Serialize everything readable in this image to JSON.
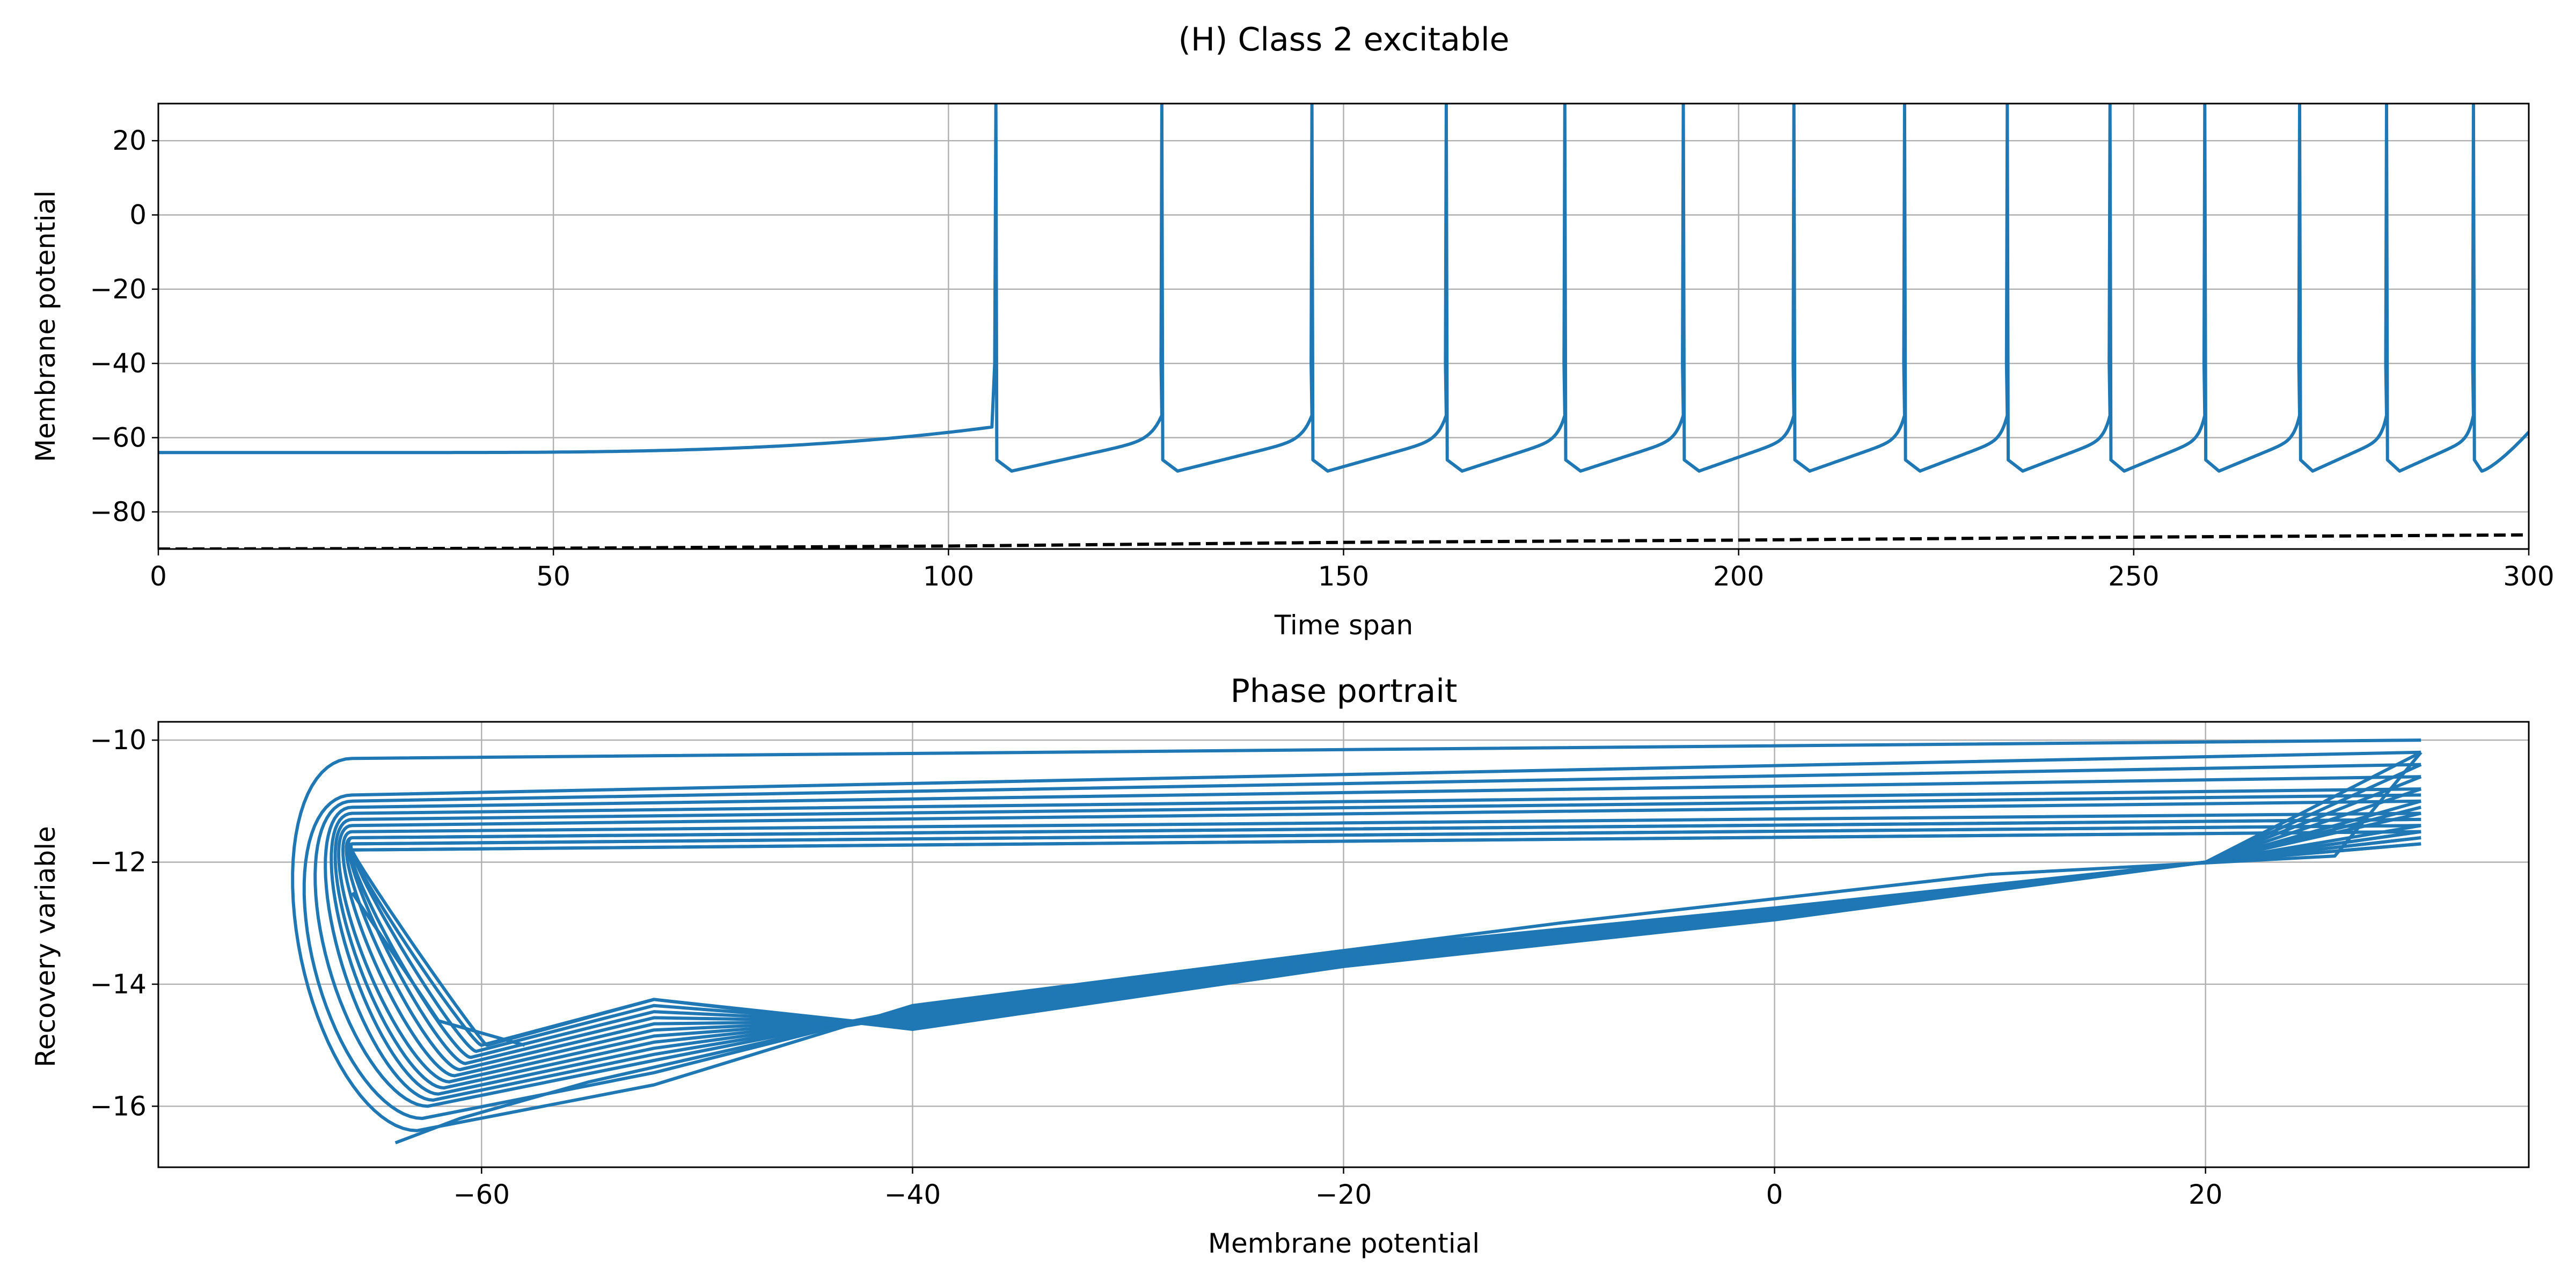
{
  "figure": {
    "suptitle": "(H) Class 2 excitable"
  },
  "colors": {
    "trace": "#1f77b4",
    "input": "#000000",
    "grid": "#b0b0b0",
    "axes": "#000000"
  },
  "chart_data": [
    {
      "type": "line",
      "title": "",
      "xlabel": "Time span",
      "ylabel": "Membrane potential",
      "xlim": [
        0,
        300
      ],
      "ylim": [
        -90,
        30
      ],
      "xticks": [
        0,
        50,
        100,
        150,
        200,
        250,
        300
      ],
      "yticks": [
        -80,
        -60,
        -40,
        -20,
        0,
        20
      ],
      "grid": true,
      "model": {
        "rest_v": -64,
        "ramp_start_t": 32,
        "pre_spike_v": -57,
        "spike_peak_v": 30,
        "reset_v": -66,
        "trough_v": -69,
        "end_v": -58.5
      },
      "spike_times": [
        106,
        127,
        146,
        163,
        178,
        193,
        207,
        221,
        234,
        247,
        259,
        271,
        282,
        293
      ],
      "series": [
        {
          "style": "solid",
          "color": "#1f77b4"
        },
        {
          "style": "dashed",
          "color": "#000000",
          "x": [
            0,
            50,
            100,
            150,
            200,
            250,
            300
          ],
          "y": [
            -90,
            -89.8,
            -89.2,
            -88.2,
            -87.6,
            -86.8,
            -86.2
          ]
        }
      ]
    },
    {
      "type": "line",
      "title": "Phase portrait",
      "xlabel": "Membrane potential",
      "ylabel": "Recovery variable",
      "xlim": [
        -75,
        35
      ],
      "ylim": [
        -17,
        -9.7
      ],
      "xticks": [
        -60,
        -40,
        -20,
        0,
        20
      ],
      "yticks": [
        -16,
        -14,
        -12,
        -10
      ],
      "grid": true,
      "model": {
        "start": [
          -64,
          -16.6
        ],
        "first_min": [
          -58,
          -15
        ]
      },
      "loops": [
        {
          "u_top": -10.3,
          "u_right": -10.0,
          "u_bottom": -16.4,
          "v_left": -70.0
        },
        {
          "u_top": -10.9,
          "u_right": -10.2,
          "u_bottom": -16.2,
          "v_left": -69.5
        },
        {
          "u_top": -11.0,
          "u_right": -10.4,
          "u_bottom": -16.0,
          "v_left": -69.0
        },
        {
          "u_top": -11.1,
          "u_right": -10.6,
          "u_bottom": -15.9,
          "v_left": -68.5
        },
        {
          "u_top": -11.2,
          "u_right": -10.8,
          "u_bottom": -15.8,
          "v_left": -68.2
        },
        {
          "u_top": -11.3,
          "u_right": -10.9,
          "u_bottom": -15.7,
          "v_left": -68.0
        },
        {
          "u_top": -11.4,
          "u_right": -11.0,
          "u_bottom": -15.6,
          "v_left": -67.8
        },
        {
          "u_top": -11.5,
          "u_right": -11.2,
          "u_bottom": -15.5,
          "v_left": -67.5
        },
        {
          "u_top": -11.6,
          "u_right": -11.3,
          "u_bottom": -15.4,
          "v_left": -67.2
        },
        {
          "u_top": -11.6,
          "u_right": -11.3,
          "u_bottom": -15.3,
          "v_left": -67.0
        },
        {
          "u_top": -11.7,
          "u_right": -11.4,
          "u_bottom": -15.2,
          "v_left": -66.8
        },
        {
          "u_top": -11.7,
          "u_right": -11.4,
          "u_bottom": -15.1,
          "v_left": -66.6
        },
        {
          "u_top": -11.8,
          "u_right": -11.5,
          "u_bottom": -15.0,
          "v_left": -66.4
        },
        {
          "u_top": -11.8,
          "u_right": -11.5,
          "u_bottom": -15.0,
          "v_left": -66.2
        }
      ]
    }
  ]
}
